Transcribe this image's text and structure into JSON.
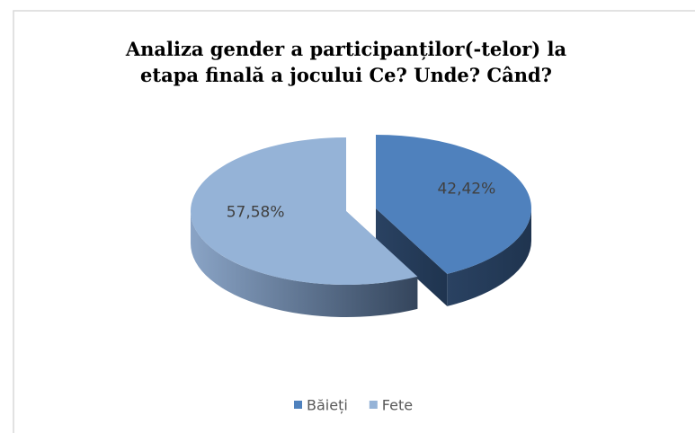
{
  "chart_data": {
    "type": "pie",
    "title": "Analiza gender a participanților(-telor) la etapa finală a jocului Ce? Unde? Când?",
    "categories": [
      "Băieți",
      "Fete"
    ],
    "values": [
      42.42,
      57.58
    ],
    "value_labels": [
      "42,42%",
      "57,58%"
    ],
    "colors": [
      "#4f81bd",
      "#95b3d7"
    ],
    "legend": "bottom"
  }
}
